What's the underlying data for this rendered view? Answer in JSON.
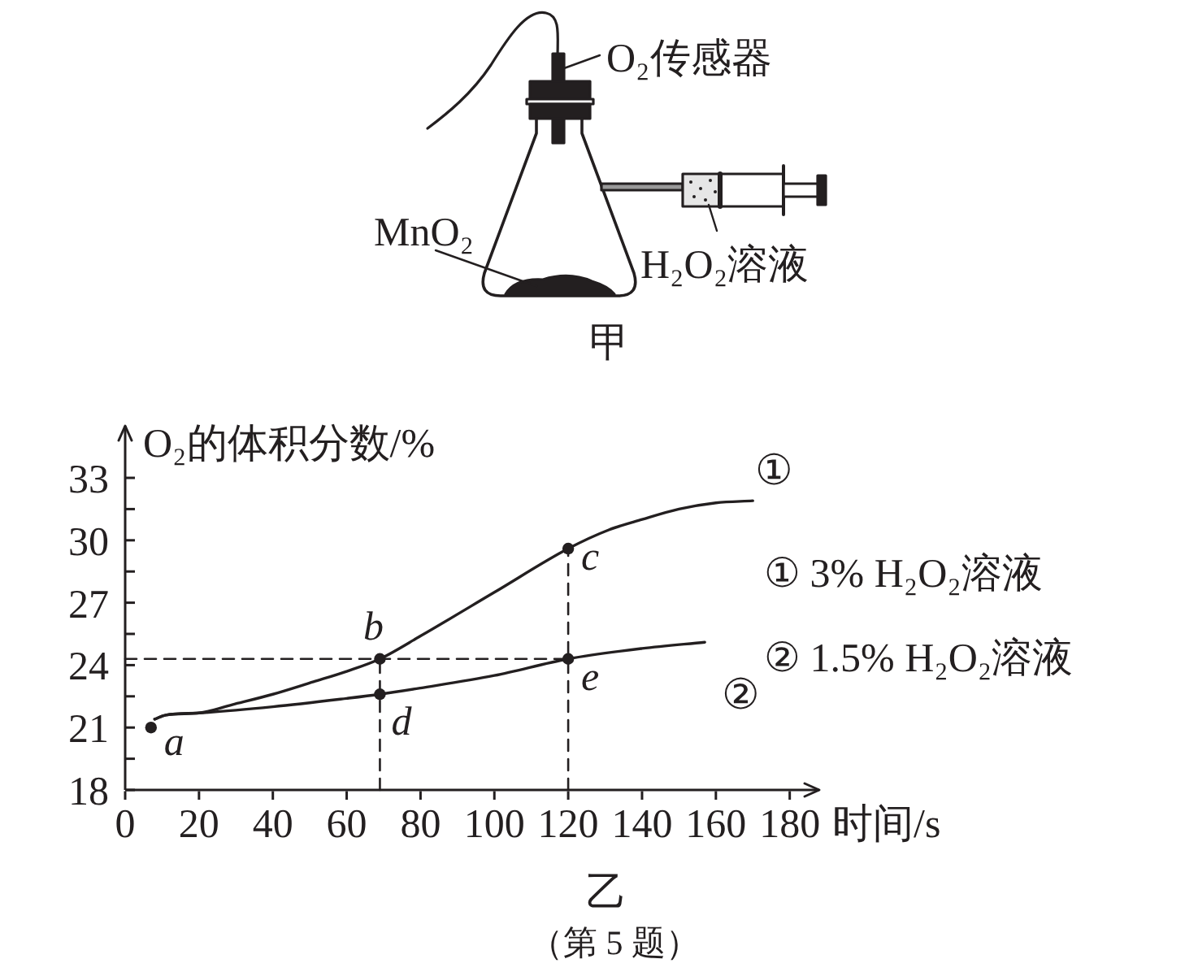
{
  "chart_data": [
    {
      "type": "other",
      "title": "甲",
      "annotations": [
        "O₂传感器",
        "MnO₂",
        "H₂O₂溶液"
      ]
    },
    {
      "type": "line",
      "title": "乙",
      "xlabel": "时间/s",
      "ylabel": "O₂的体积分数/%",
      "xlim": [
        0,
        188
      ],
      "ylim": [
        18,
        35.5
      ],
      "xticks": [
        0,
        20,
        40,
        60,
        80,
        100,
        120,
        140,
        160,
        180
      ],
      "yticks": [
        18,
        {
          "value": 19.5,
          "label": null
        },
        21,
        {
          "value": 22.5,
          "label": null
        },
        24,
        {
          "value": 25.5,
          "label": null
        },
        27,
        {
          "value": 28.5,
          "label": null
        },
        30,
        {
          "value": 31.5,
          "label": null
        },
        33
      ],
      "series": [
        {
          "name": "①",
          "type": "line",
          "color": "#231f20",
          "line_style": "solid",
          "x": [
            8,
            11,
            20,
            29,
            40,
            51,
            60,
            69,
            80,
            100,
            120,
            131,
            140,
            150,
            160,
            170
          ],
          "values": [
            21.4,
            21.6,
            21.7,
            22.1,
            22.6,
            23.2,
            23.7,
            24.3,
            25.4,
            27.5,
            29.6,
            30.5,
            31.0,
            31.5,
            31.8,
            31.9
          ]
        },
        {
          "name": "②",
          "type": "line",
          "color": "#231f20",
          "line_style": "solid",
          "x": [
            8,
            11,
            20,
            40,
            60,
            69,
            80,
            100,
            120,
            140,
            157
          ],
          "values": [
            21.4,
            21.6,
            21.7,
            22.0,
            22.4,
            22.6,
            22.9,
            23.5,
            24.3,
            24.8,
            25.1
          ]
        },
        {
          "type": "line",
          "color": "#231f20",
          "line_style": "dashed",
          "x": [
            0,
            120
          ],
          "values": [
            24.3,
            24.3
          ]
        },
        {
          "type": "line",
          "color": "#231f20",
          "line_style": "dashed",
          "x": [
            69,
            69
          ],
          "values": [
            18,
            24.3
          ]
        },
        {
          "type": "line",
          "color": "#231f20",
          "line_style": "dashed",
          "x": [
            120,
            120
          ],
          "values": [
            18,
            29.6
          ]
        },
        {
          "type": "scatter",
          "color": "#231f20",
          "marker": "circle",
          "x": [
            7,
            69,
            120,
            69,
            120
          ],
          "values": [
            21.0,
            24.3,
            29.6,
            22.6,
            24.3
          ]
        }
      ],
      "annotations": [
        {
          "text": "a",
          "x": 7,
          "y": 21.0
        },
        {
          "text": "b",
          "x": 69,
          "y": 24.3
        },
        {
          "text": "c",
          "x": 120,
          "y": 29.6
        },
        {
          "text": "d",
          "x": 69,
          "y": 22.6
        },
        {
          "text": "e",
          "x": 120,
          "y": 24.3
        },
        "① 3% H₂O₂溶液",
        "② 1.5% H₂O₂溶液",
        "（第 5 题）"
      ]
    }
  ]
}
